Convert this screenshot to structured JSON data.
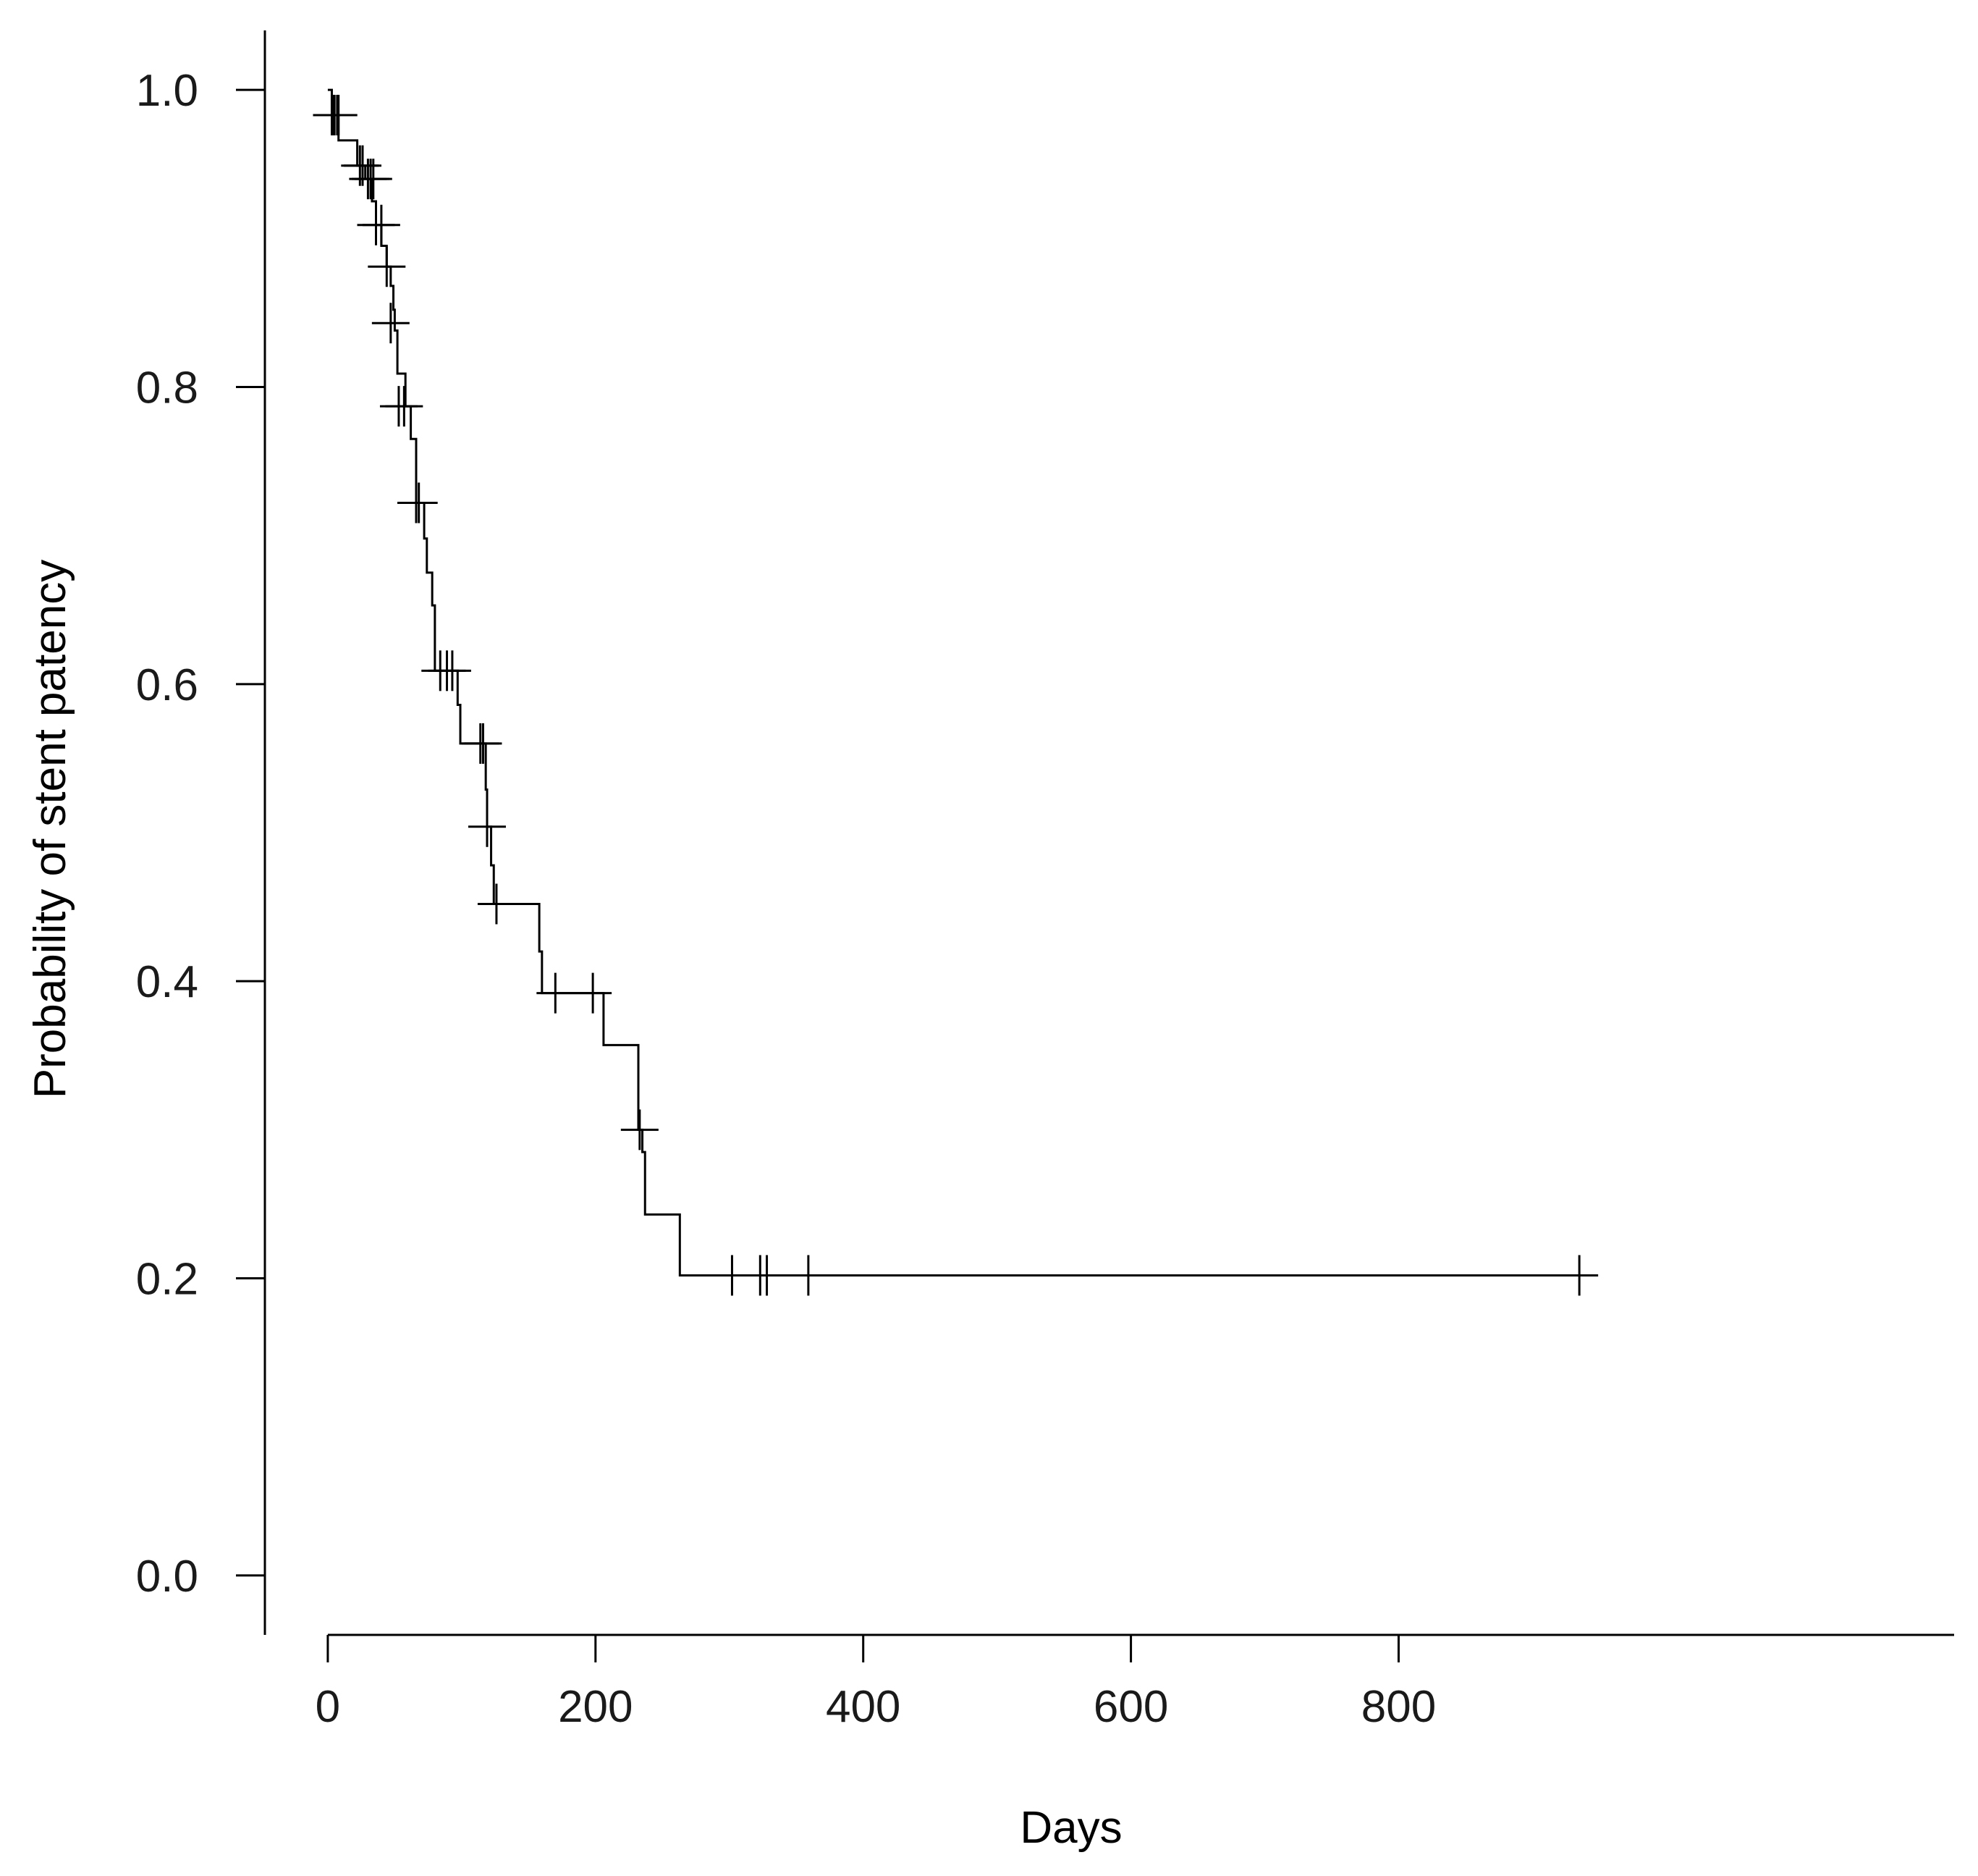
{
  "chart_data": {
    "type": "line",
    "subtype": "kaplan-meier",
    "title": "",
    "xlabel": "Days",
    "ylabel": "Probability of stent patency",
    "xlim": [
      -47,
      1215
    ],
    "ylim": [
      -0.04,
      1.04
    ],
    "x_ticks": [
      0,
      200,
      400,
      600,
      800
    ],
    "x_tick_labels": [
      "0",
      "200",
      "400",
      "600",
      "800"
    ],
    "y_ticks": [
      0.0,
      0.2,
      0.4,
      0.6,
      0.8,
      1.0
    ],
    "y_tick_labels": [
      "0.0",
      "0.2",
      "0.4",
      "0.6",
      "0.8",
      "1.0"
    ],
    "grid": false,
    "legend": "none",
    "line_color": "#000000",
    "series": [
      {
        "steps": [
          [
            0,
            1.0
          ],
          [
            3,
            0.983
          ],
          [
            8,
            0.966
          ],
          [
            22,
            0.949
          ],
          [
            28,
            0.94
          ],
          [
            33,
            0.925
          ],
          [
            36,
            0.909
          ],
          [
            40,
            0.895
          ],
          [
            44,
            0.881
          ],
          [
            47,
            0.868
          ],
          [
            49,
            0.852
          ],
          [
            50,
            0.838
          ],
          [
            52,
            0.809
          ],
          [
            58,
            0.787
          ],
          [
            62,
            0.765
          ],
          [
            66,
            0.722
          ],
          [
            72,
            0.698
          ],
          [
            74,
            0.675
          ],
          [
            78,
            0.653
          ],
          [
            80,
            0.609
          ],
          [
            97,
            0.586
          ],
          [
            99,
            0.56
          ],
          [
            118,
            0.529
          ],
          [
            119,
            0.504
          ],
          [
            122,
            0.478
          ],
          [
            124,
            0.452
          ],
          [
            158,
            0.42
          ],
          [
            160,
            0.392
          ],
          [
            206,
            0.357
          ],
          [
            232,
            0.3
          ],
          [
            235,
            0.285
          ],
          [
            237,
            0.243
          ],
          [
            263,
            0.202
          ],
          [
            945,
            0.202
          ]
        ],
        "censored": [
          [
            3,
            0.983
          ],
          [
            4,
            0.983
          ],
          [
            5,
            0.983
          ],
          [
            7,
            0.983
          ],
          [
            8,
            0.983
          ],
          [
            24,
            0.949
          ],
          [
            26,
            0.949
          ],
          [
            30,
            0.94
          ],
          [
            32,
            0.94
          ],
          [
            34,
            0.94
          ],
          [
            36,
            0.909
          ],
          [
            40,
            0.909
          ],
          [
            44,
            0.881
          ],
          [
            47,
            0.843
          ],
          [
            53,
            0.787
          ],
          [
            57,
            0.787
          ],
          [
            66,
            0.722
          ],
          [
            68,
            0.722
          ],
          [
            84,
            0.609
          ],
          [
            89,
            0.609
          ],
          [
            93,
            0.609
          ],
          [
            114,
            0.56
          ],
          [
            116,
            0.56
          ],
          [
            119,
            0.504
          ],
          [
            126,
            0.452
          ],
          [
            170,
            0.392
          ],
          [
            198,
            0.392
          ],
          [
            233,
            0.3
          ],
          [
            302,
            0.202
          ],
          [
            323,
            0.202
          ],
          [
            328,
            0.202
          ],
          [
            359,
            0.202
          ],
          [
            935,
            0.202
          ]
        ]
      }
    ]
  }
}
